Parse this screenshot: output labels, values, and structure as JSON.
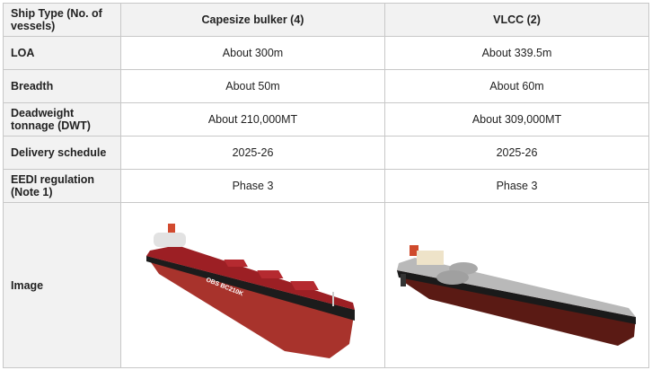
{
  "table": {
    "header": {
      "label": "Ship Type (No. of vessels)",
      "col1": "Capesize bulker (4)",
      "col2": "VLCC (2)"
    },
    "rows": [
      {
        "label": "LOA",
        "col1": "About 300m",
        "col2": "About 339.5m"
      },
      {
        "label": "Breadth",
        "col1": "About 50m",
        "col2": "About 60m"
      },
      {
        "label": "Deadweight tonnage (DWT)",
        "col1": "About 210,000MT",
        "col2": "About 309,000MT"
      },
      {
        "label": "Delivery schedule",
        "col1": "2025-26",
        "col2": "2025-26"
      },
      {
        "label": "EEDI regulation (Note 1)",
        "col1": "Phase 3",
        "col2": "Phase 3"
      }
    ],
    "image_row": {
      "label": "Image",
      "ship1_hull_text": "OBS BC210K"
    }
  },
  "colors": {
    "hull_red": "#a8332c",
    "deck_red": "#9c1f24",
    "tanker_deck": "#b9b9b9",
    "header_bg": "#f2f2f2"
  }
}
